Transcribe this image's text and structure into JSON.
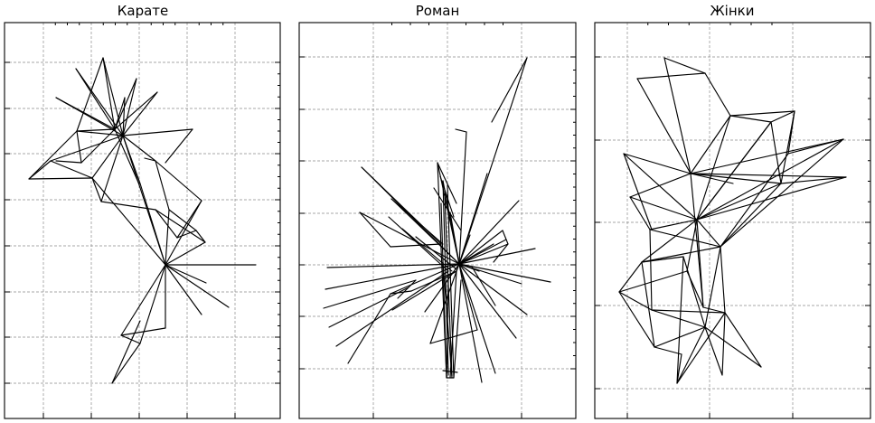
{
  "figure": {
    "panels": [
      {
        "title": "Карате"
      },
      {
        "title": "Роман"
      },
      {
        "title": "Жінки"
      }
    ]
  }
}
